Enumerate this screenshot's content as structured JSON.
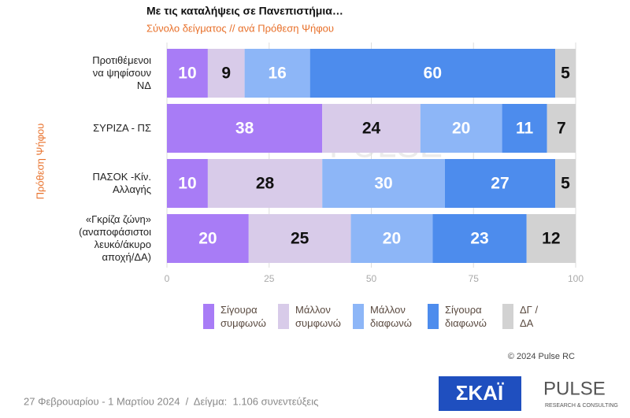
{
  "chart_data": {
    "type": "bar",
    "orientation": "horizontal",
    "stacked": true,
    "title": "Με τις καταλήψεις σε Πανεπιστήμια…",
    "subtitle": "Σύνολο δείγματος // ανά Πρόθεση Ψήφου",
    "y_label": "Πρόθεση Ψήφου",
    "categories": [
      "Προτιθέμενοι\nνα ψηφίσουν\nΝΔ",
      "ΣΥΡΙΖΑ - ΠΣ",
      "ΠΑΣΟΚ -Κίν.\nΑλλαγής",
      "«Γκρίζα ζώνη»\n(αναποφάσιστοι\nλευκό/άκυρο\nαποχή/ΔΑ)"
    ],
    "series": [
      {
        "name": "Σίγουρα\nσυμφωνώ",
        "color": "#a87cf6",
        "label_color": "#ffffff",
        "values": [
          10,
          38,
          10,
          20
        ]
      },
      {
        "name": "Μάλλον\nσυμφωνώ",
        "color": "#d8cbe9",
        "label_color": "#111111",
        "values": [
          9,
          24,
          28,
          25
        ]
      },
      {
        "name": "Μάλλον\nδιαφωνώ",
        "color": "#8db6f7",
        "label_color": "#ffffff",
        "values": [
          16,
          20,
          30,
          20
        ]
      },
      {
        "name": "Σίγουρα\nδιαφωνώ",
        "color": "#4d8ced",
        "label_color": "#ffffff",
        "values": [
          60,
          11,
          27,
          23
        ]
      },
      {
        "name": "ΔΓ /\nΔΑ",
        "color": "#d2d2d2",
        "label_color": "#111111",
        "values": [
          5,
          7,
          5,
          12
        ]
      }
    ],
    "xlim": [
      0,
      100
    ],
    "xticks": [
      0,
      25,
      50,
      75,
      100
    ],
    "grid": true,
    "watermark": [
      "PULSE",
      "RESEARCH & CONSULTING"
    ],
    "copyright": "© 2024 Pulse RC",
    "footnote": "27 Φεβρουαρίου - 1 Μαρτίου 2024  /  Δείγμα:  1.106 συνεντεύξεις",
    "logos": [
      "ΣΚΑΪ",
      "PULSE",
      "RESEARCH & CONSULTING"
    ]
  }
}
